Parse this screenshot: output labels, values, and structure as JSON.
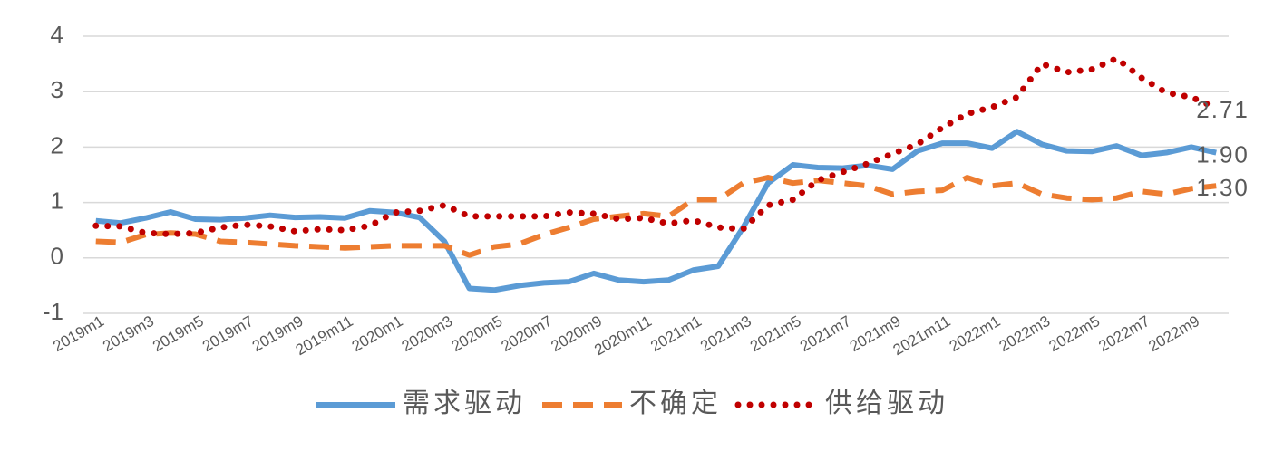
{
  "chart_data": {
    "type": "line",
    "categories": [
      "2019m1",
      null,
      "2019m3",
      null,
      "2019m5",
      null,
      "2019m7",
      null,
      "2019m9",
      null,
      "2019m11",
      null,
      "2020m1",
      null,
      "2020m3",
      null,
      "2020m5",
      null,
      "2020m7",
      null,
      "2020m9",
      null,
      "2020m11",
      null,
      "2021m1",
      null,
      "2021m3",
      null,
      "2021m5",
      null,
      "2021m7",
      null,
      "2021m9",
      null,
      "2021m11",
      null,
      "2022m1",
      null,
      "2022m3",
      null,
      "2022m5",
      null,
      "2022m7",
      null,
      "2022m9",
      null
    ],
    "series": [
      {
        "name": "需求驱动",
        "color": "#5b9bd5",
        "dash": "solid",
        "values": [
          0.67,
          0.63,
          0.72,
          0.83,
          0.7,
          0.69,
          0.72,
          0.77,
          0.73,
          0.74,
          0.72,
          0.85,
          0.82,
          0.73,
          0.3,
          -0.55,
          -0.58,
          -0.5,
          -0.45,
          -0.43,
          -0.28,
          -0.4,
          -0.43,
          -0.4,
          -0.22,
          -0.15,
          0.55,
          1.35,
          1.68,
          1.63,
          1.62,
          1.67,
          1.6,
          1.93,
          2.07,
          2.07,
          1.98,
          2.28,
          2.05,
          1.93,
          1.92,
          2.02,
          1.85,
          1.9,
          2.0,
          1.9
        ],
        "value_labels": [
          null,
          null,
          null,
          null,
          null,
          null,
          null,
          null,
          null,
          null,
          null,
          null,
          null,
          null,
          null,
          null,
          null,
          null,
          null,
          null,
          null,
          null,
          null,
          null,
          null,
          null,
          null,
          null,
          null,
          null,
          null,
          null,
          null,
          null,
          null,
          null,
          null,
          null,
          null,
          null,
          null,
          null,
          null,
          null,
          null,
          "1.90"
        ]
      },
      {
        "name": "不确定",
        "color": "#ed7d31",
        "dash": "dash",
        "values": [
          0.3,
          0.28,
          0.42,
          0.45,
          0.43,
          0.3,
          0.28,
          0.25,
          0.22,
          0.2,
          0.18,
          0.2,
          0.22,
          0.22,
          0.22,
          0.05,
          0.2,
          0.25,
          0.42,
          0.55,
          0.7,
          0.75,
          0.8,
          0.75,
          1.05,
          1.05,
          1.35,
          1.45,
          1.35,
          1.4,
          1.35,
          1.3,
          1.15,
          1.2,
          1.22,
          1.45,
          1.3,
          1.35,
          1.15,
          1.08,
          1.05,
          1.08,
          1.2,
          1.15,
          1.25,
          1.3
        ],
        "value_labels": [
          null,
          null,
          null,
          null,
          null,
          null,
          null,
          null,
          null,
          null,
          null,
          null,
          null,
          null,
          null,
          null,
          null,
          null,
          null,
          null,
          null,
          null,
          null,
          null,
          null,
          null,
          null,
          null,
          null,
          null,
          null,
          null,
          null,
          null,
          null,
          null,
          null,
          null,
          null,
          null,
          null,
          null,
          null,
          null,
          null,
          "1.30"
        ]
      },
      {
        "name": "供给驱动",
        "color": "#c00000",
        "dash": "dot",
        "values": [
          0.58,
          0.57,
          0.45,
          0.43,
          0.45,
          0.55,
          0.6,
          0.57,
          0.48,
          0.52,
          0.5,
          0.58,
          0.82,
          0.85,
          0.95,
          0.75,
          0.75,
          0.75,
          0.75,
          0.82,
          0.8,
          0.7,
          0.72,
          0.62,
          0.68,
          0.55,
          0.52,
          0.95,
          1.05,
          1.4,
          1.55,
          1.7,
          1.88,
          2.05,
          2.35,
          2.6,
          2.72,
          2.9,
          3.5,
          3.35,
          3.4,
          3.6,
          3.25,
          2.98,
          2.9,
          2.71
        ],
        "value_labels": [
          null,
          null,
          null,
          null,
          null,
          null,
          null,
          null,
          null,
          null,
          null,
          null,
          null,
          null,
          null,
          null,
          null,
          null,
          null,
          null,
          null,
          null,
          null,
          null,
          null,
          null,
          null,
          null,
          null,
          null,
          null,
          null,
          null,
          null,
          null,
          null,
          null,
          null,
          null,
          null,
          null,
          null,
          null,
          null,
          null,
          "2.71"
        ]
      }
    ],
    "ylim": [
      -1,
      4
    ],
    "yticks": [
      -1,
      0,
      1,
      2,
      3,
      4
    ],
    "grid": true,
    "legend": "bottom"
  }
}
